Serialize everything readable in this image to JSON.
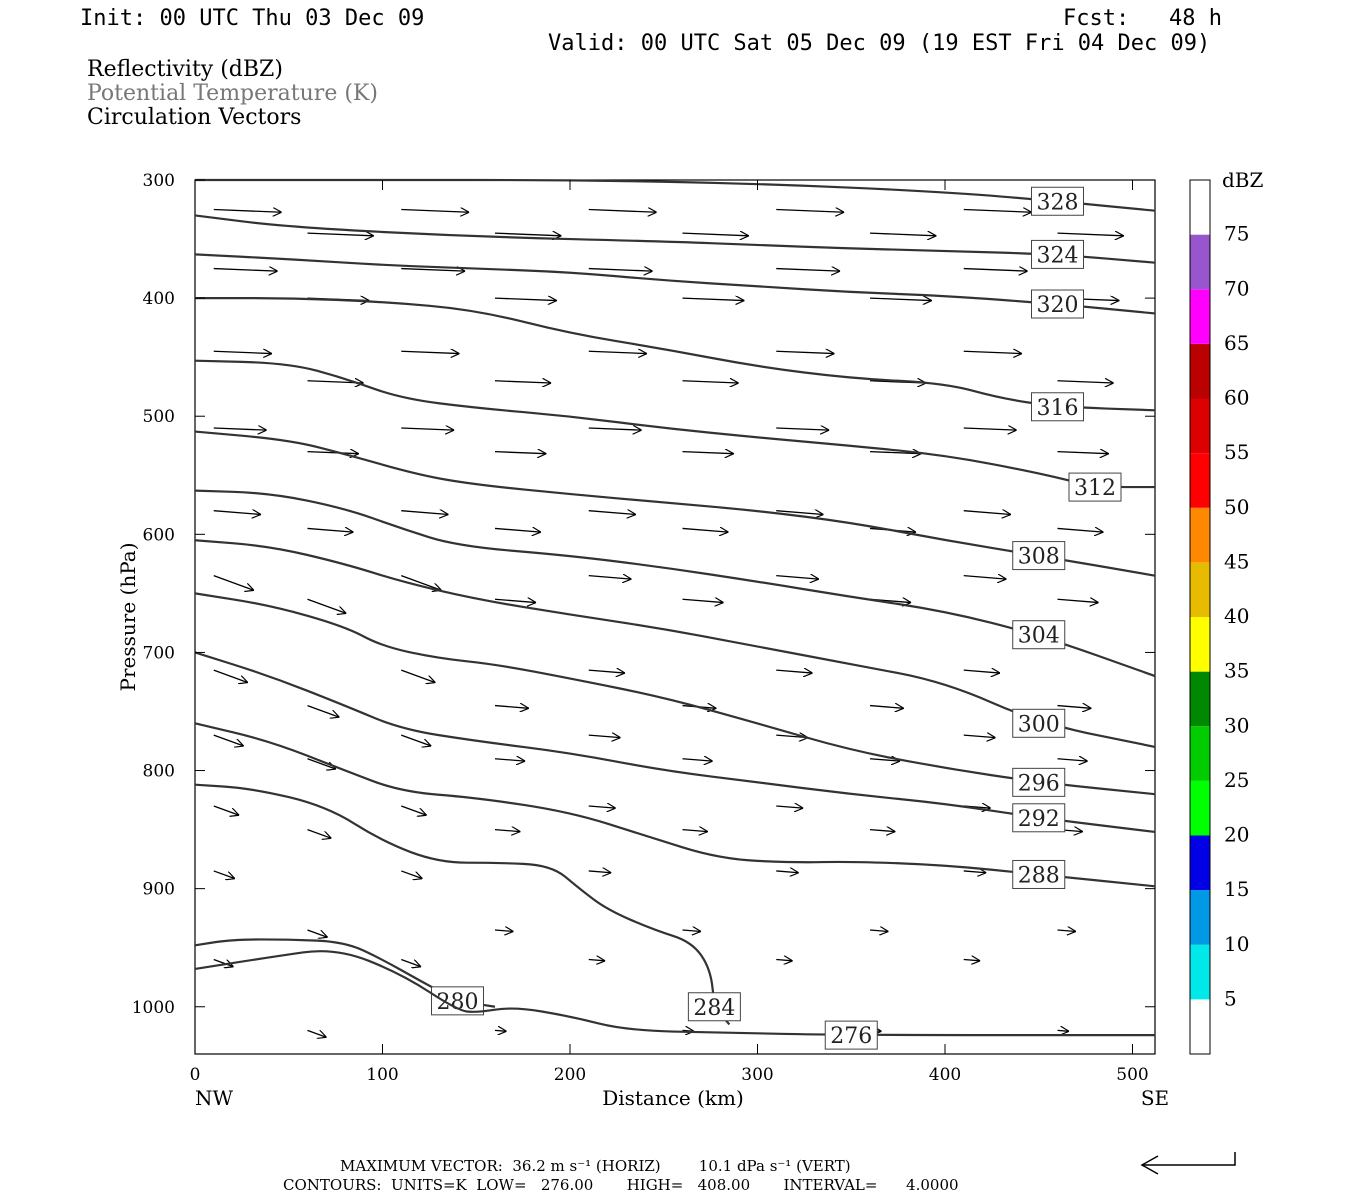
{
  "header": {
    "init": "Init: 00 UTC Thu 03 Dec 09",
    "fcst": "Fcst:   48 h",
    "valid": "Valid: 00 UTC Sat 05 Dec 09 (19 EST Fri 04 Dec 09)"
  },
  "legend": {
    "line1": "Reflectivity (dBZ)",
    "line2": "Potential Temperature (K)",
    "line3": "Circulation Vectors"
  },
  "chart_data": {
    "type": "cross-section contour with vectors",
    "xlabel": "Distance (km)",
    "ylabel": "Pressure (hPa)",
    "xlim": [
      0,
      512
    ],
    "ylim": [
      1040,
      300
    ],
    "xticks": [
      0,
      100,
      200,
      300,
      400,
      500
    ],
    "yticks": [
      300,
      400,
      500,
      600,
      700,
      800,
      900,
      1000
    ],
    "x_end_labels": {
      "left": "NW",
      "right": "SE"
    },
    "contours": [
      {
        "label": "328",
        "points": [
          [
            0,
            300
          ],
          [
            100,
            300
          ],
          [
            200,
            300
          ],
          [
            300,
            303
          ],
          [
            400,
            310
          ],
          [
            460,
            318
          ],
          [
            512,
            326
          ]
        ]
      },
      {
        "label": "324",
        "points": [
          [
            0,
            330
          ],
          [
            50,
            340
          ],
          [
            150,
            348
          ],
          [
            250,
            352
          ],
          [
            300,
            355
          ],
          [
            350,
            358
          ],
          [
            400,
            360
          ],
          [
            460,
            363
          ],
          [
            512,
            370
          ]
        ]
      },
      {
        "label": "320",
        "points": [
          [
            0,
            363
          ],
          [
            50,
            367
          ],
          [
            100,
            372
          ],
          [
            150,
            375
          ],
          [
            200,
            378
          ],
          [
            250,
            385
          ],
          [
            300,
            390
          ],
          [
            350,
            395
          ],
          [
            400,
            398
          ],
          [
            460,
            405
          ],
          [
            512,
            413
          ]
        ]
      },
      {
        "label": "316",
        "points": [
          [
            0,
            400
          ],
          [
            50,
            400
          ],
          [
            100,
            403
          ],
          [
            150,
            410
          ],
          [
            200,
            430
          ],
          [
            250,
            443
          ],
          [
            300,
            458
          ],
          [
            350,
            468
          ],
          [
            400,
            472
          ],
          [
            430,
            485
          ],
          [
            460,
            492
          ],
          [
            512,
            495
          ]
        ]
      },
      {
        "label": "312",
        "points": [
          [
            0,
            453
          ],
          [
            50,
            455
          ],
          [
            80,
            468
          ],
          [
            110,
            485
          ],
          [
            150,
            493
          ],
          [
            200,
            500
          ],
          [
            250,
            510
          ],
          [
            300,
            518
          ],
          [
            350,
            525
          ],
          [
            400,
            533
          ],
          [
            450,
            548
          ],
          [
            480,
            560
          ],
          [
            512,
            560
          ]
        ]
      },
      {
        "label": "308",
        "points": [
          [
            0,
            513
          ],
          [
            50,
            520
          ],
          [
            80,
            532
          ],
          [
            120,
            550
          ],
          [
            150,
            558
          ],
          [
            200,
            566
          ],
          [
            250,
            573
          ],
          [
            300,
            580
          ],
          [
            350,
            590
          ],
          [
            400,
            605
          ],
          [
            450,
            618
          ],
          [
            512,
            635
          ]
        ]
      },
      {
        "label": "304",
        "points": [
          [
            0,
            563
          ],
          [
            40,
            565
          ],
          [
            80,
            578
          ],
          [
            110,
            595
          ],
          [
            140,
            610
          ],
          [
            200,
            618
          ],
          [
            250,
            628
          ],
          [
            300,
            640
          ],
          [
            350,
            653
          ],
          [
            400,
            665
          ],
          [
            450,
            685
          ],
          [
            512,
            720
          ]
        ]
      },
      {
        "label": "300",
        "points": [
          [
            0,
            605
          ],
          [
            40,
            610
          ],
          [
            80,
            625
          ],
          [
            110,
            640
          ],
          [
            150,
            655
          ],
          [
            200,
            668
          ],
          [
            250,
            680
          ],
          [
            300,
            695
          ],
          [
            350,
            710
          ],
          [
            400,
            725
          ],
          [
            450,
            760
          ],
          [
            512,
            780
          ]
        ]
      },
      {
        "label": "296",
        "points": [
          [
            0,
            650
          ],
          [
            40,
            660
          ],
          [
            80,
            678
          ],
          [
            100,
            695
          ],
          [
            130,
            705
          ],
          [
            160,
            710
          ],
          [
            200,
            722
          ],
          [
            250,
            738
          ],
          [
            300,
            760
          ],
          [
            350,
            783
          ],
          [
            400,
            798
          ],
          [
            450,
            810
          ],
          [
            512,
            820
          ]
        ]
      },
      {
        "label": "292",
        "points": [
          [
            0,
            700
          ],
          [
            40,
            720
          ],
          [
            80,
            745
          ],
          [
            110,
            765
          ],
          [
            150,
            775
          ],
          [
            200,
            785
          ],
          [
            250,
            800
          ],
          [
            300,
            810
          ],
          [
            350,
            820
          ],
          [
            400,
            828
          ],
          [
            450,
            840
          ],
          [
            512,
            852
          ]
        ]
      },
      {
        "label": "288",
        "points": [
          [
            0,
            760
          ],
          [
            40,
            775
          ],
          [
            80,
            800
          ],
          [
            110,
            818
          ],
          [
            150,
            823
          ],
          [
            200,
            835
          ],
          [
            240,
            855
          ],
          [
            280,
            875
          ],
          [
            320,
            878
          ],
          [
            350,
            877
          ],
          [
            400,
            880
          ],
          [
            450,
            888
          ],
          [
            512,
            898
          ]
        ]
      },
      {
        "label": "284",
        "points": [
          [
            0,
            812
          ],
          [
            30,
            815
          ],
          [
            70,
            830
          ],
          [
            100,
            860
          ],
          [
            130,
            878
          ],
          [
            160,
            878
          ],
          [
            190,
            880
          ],
          [
            205,
            900
          ],
          [
            220,
            918
          ],
          [
            245,
            935
          ],
          [
            265,
            945
          ],
          [
            275,
            968
          ],
          [
            277,
            1000
          ],
          [
            285,
            1015
          ]
        ]
      },
      {
        "label": "280",
        "points": [
          [
            0,
            948
          ],
          [
            20,
            943
          ],
          [
            50,
            943
          ],
          [
            80,
            945
          ],
          [
            100,
            960
          ],
          [
            120,
            978
          ],
          [
            140,
            995
          ],
          [
            160,
            1000
          ]
        ]
      },
      {
        "label": "276",
        "points": [
          [
            0,
            968
          ],
          [
            40,
            958
          ],
          [
            75,
            950
          ],
          [
            110,
            972
          ],
          [
            140,
            1003
          ],
          [
            150,
            1005
          ],
          [
            170,
            1000
          ],
          [
            200,
            1008
          ],
          [
            230,
            1020
          ],
          [
            280,
            1022
          ],
          [
            350,
            1024
          ],
          [
            512,
            1024
          ]
        ]
      }
    ],
    "vectors_note": "Circulation vectors, predominantly NW-to-SE flow, strongest aloft",
    "colorbar": {
      "label": "dBZ",
      "levels": [
        "5",
        "10",
        "15",
        "20",
        "25",
        "30",
        "35",
        "40",
        "45",
        "50",
        "55",
        "60",
        "65",
        "70",
        "75"
      ],
      "colors": [
        "#ffffff",
        "#00e8e8",
        "#0099e6",
        "#0000e6",
        "#00ff00",
        "#00cc00",
        "#008800",
        "#ffff00",
        "#e6bb00",
        "#ff8800",
        "#ff0000",
        "#dd0000",
        "#bb0000",
        "#ff00ff",
        "#9955cc",
        "#ffffff"
      ]
    }
  },
  "footer": {
    "line1": "MAXIMUM VECTOR:  36.2 m s⁻¹ (HORIZ)        10.1 dPa s⁻¹ (VERT)",
    "line2": "CONTOURS:  UNITS=K  LOW=   276.00       HIGH=   408.00       INTERVAL=      4.0000"
  }
}
